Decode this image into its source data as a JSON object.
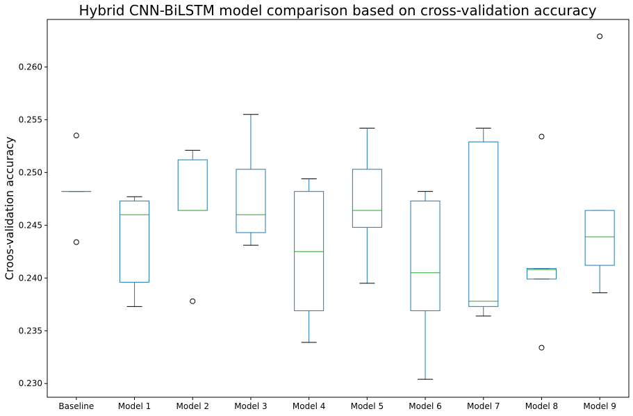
{
  "chart_data": {
    "type": "box",
    "title": "Hybrid CNN-BiLSTM model comparison based on cross-validation accuracy",
    "xlabel": "",
    "ylabel": "Croos-validation accuracy",
    "ylim": [
      0.2287,
      0.2645
    ],
    "yticks": [
      0.23,
      0.235,
      0.24,
      0.245,
      0.25,
      0.255,
      0.26
    ],
    "ytick_labels": [
      "0.230",
      "0.235",
      "0.240",
      "0.245",
      "0.250",
      "0.255",
      "0.260"
    ],
    "grid": false,
    "colors": {
      "box": "#1f77b4",
      "median": "#2ca02c",
      "whisker": "#1f77b4",
      "cap": "#000000",
      "flier": "#000000"
    },
    "categories": [
      "Baseline",
      "Model 1",
      "Model 2",
      "Model 3",
      "Model 4",
      "Model 5",
      "Model 6",
      "Model 7",
      "Model 8",
      "Model 9"
    ],
    "boxes": [
      {
        "label": "Baseline",
        "whislo": 0.2482,
        "q1": 0.2482,
        "med": 0.2482,
        "q3": 0.2482,
        "whishi": 0.2482,
        "fliers": [
          0.2535,
          0.2434
        ]
      },
      {
        "label": "Model 1",
        "whislo": 0.2373,
        "q1": 0.2396,
        "med": 0.246,
        "q3": 0.2473,
        "whishi": 0.2477,
        "fliers": []
      },
      {
        "label": "Model 2",
        "whislo": 0.2464,
        "q1": 0.2464,
        "med": 0.2464,
        "q3": 0.2512,
        "whishi": 0.2521,
        "fliers": [
          0.2378
        ]
      },
      {
        "label": "Model 3",
        "whislo": 0.2431,
        "q1": 0.2443,
        "med": 0.246,
        "q3": 0.2503,
        "whishi": 0.2555,
        "fliers": []
      },
      {
        "label": "Model 4",
        "whislo": 0.2339,
        "q1": 0.2369,
        "med": 0.2425,
        "q3": 0.2482,
        "whishi": 0.2494,
        "fliers": []
      },
      {
        "label": "Model 5",
        "whislo": 0.2395,
        "q1": 0.2448,
        "med": 0.2464,
        "q3": 0.2503,
        "whishi": 0.2542,
        "fliers": []
      },
      {
        "label": "Model 6",
        "whislo": 0.2304,
        "q1": 0.2369,
        "med": 0.2405,
        "q3": 0.2473,
        "whishi": 0.2482,
        "fliers": []
      },
      {
        "label": "Model 7",
        "whislo": 0.2364,
        "q1": 0.2373,
        "med": 0.2378,
        "q3": 0.2529,
        "whishi": 0.2542,
        "fliers": []
      },
      {
        "label": "Model 8",
        "whislo": 0.2399,
        "q1": 0.2399,
        "med": 0.2408,
        "q3": 0.2409,
        "whishi": 0.2409,
        "fliers": [
          0.2534,
          0.2334
        ]
      },
      {
        "label": "Model 9",
        "whislo": 0.2386,
        "q1": 0.2412,
        "med": 0.2439,
        "q3": 0.2464,
        "whishi": 0.2464,
        "fliers": [
          0.2629
        ]
      }
    ]
  }
}
